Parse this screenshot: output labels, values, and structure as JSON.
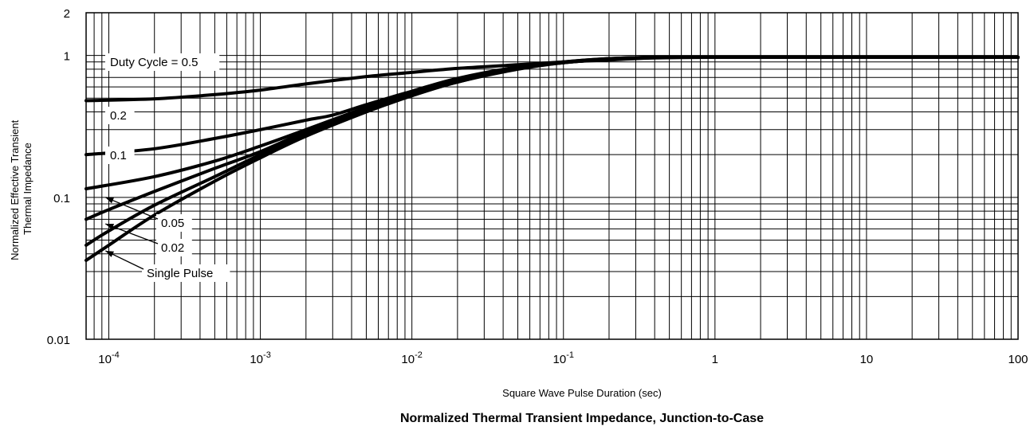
{
  "chart_data": {
    "type": "line",
    "title": "Normalized Thermal Transient Impedance, Junction-to-Case",
    "xlabel": "Square Wave Pulse Duration (sec)",
    "ylabel_lines": [
      "Normalized Effective Transient",
      "Thermal Impedance"
    ],
    "x_scale": "log",
    "y_scale": "log",
    "xlim": [
      7.08e-05,
      100
    ],
    "ylim": [
      0.01,
      2
    ],
    "grid": true,
    "x_ticks": [
      {
        "value": 0.0001,
        "base": "10",
        "exp": "-4"
      },
      {
        "value": 0.001,
        "base": "10",
        "exp": "-3"
      },
      {
        "value": 0.01,
        "base": "10",
        "exp": "-2"
      },
      {
        "value": 0.1,
        "base": "10",
        "exp": "-1"
      },
      {
        "value": 1,
        "base": "1",
        "exp": ""
      },
      {
        "value": 10,
        "base": "10",
        "exp": ""
      },
      {
        "value": 100,
        "base": "100",
        "exp": ""
      }
    ],
    "y_ticks": [
      {
        "value": 0.01,
        "label": "0.01"
      },
      {
        "value": 0.1,
        "label": "0.1"
      },
      {
        "value": 1,
        "label": "1"
      },
      {
        "value": 2,
        "label": "2"
      }
    ],
    "series": [
      {
        "name": "Duty Cycle = 0.5",
        "x": [
          7.08e-05,
          0.0002,
          0.0005,
          0.001,
          0.002,
          0.005,
          0.01,
          0.02,
          0.05,
          0.1,
          0.2,
          0.4,
          1,
          10,
          100
        ],
        "y": [
          0.48,
          0.495,
          0.53,
          0.57,
          0.63,
          0.71,
          0.76,
          0.81,
          0.86,
          0.9,
          0.93,
          0.96,
          0.97,
          0.97,
          0.97
        ]
      },
      {
        "name": "0.2",
        "x": [
          7.08e-05,
          0.0002,
          0.0005,
          0.001,
          0.002,
          0.003,
          0.005,
          0.01,
          0.02,
          0.05,
          0.1,
          0.2,
          0.4,
          1,
          100
        ],
        "y": [
          0.2,
          0.22,
          0.26,
          0.3,
          0.35,
          0.38,
          0.45,
          0.56,
          0.69,
          0.83,
          0.9,
          0.95,
          0.97,
          0.97,
          0.97
        ]
      },
      {
        "name": "0.1",
        "x": [
          7.08e-05,
          0.0002,
          0.0005,
          0.001,
          0.002,
          0.005,
          0.01,
          0.02,
          0.05,
          0.1,
          0.2,
          0.4,
          1,
          100
        ],
        "y": [
          0.115,
          0.14,
          0.18,
          0.23,
          0.3,
          0.43,
          0.55,
          0.67,
          0.82,
          0.9,
          0.95,
          0.97,
          0.97,
          0.97
        ]
      },
      {
        "name": "0.05",
        "x": [
          7.08e-05,
          0.0001,
          0.0002,
          0.0005,
          0.001,
          0.002,
          0.005,
          0.01,
          0.02,
          0.05,
          0.1,
          0.2,
          0.4,
          1,
          100
        ],
        "y": [
          0.07,
          0.082,
          0.11,
          0.16,
          0.21,
          0.29,
          0.42,
          0.54,
          0.66,
          0.81,
          0.89,
          0.94,
          0.97,
          0.97,
          0.97
        ]
      },
      {
        "name": "0.02",
        "x": [
          7.08e-05,
          0.0001,
          0.0002,
          0.0005,
          0.001,
          0.002,
          0.005,
          0.01,
          0.02,
          0.05,
          0.1,
          0.2,
          0.4,
          1,
          100
        ],
        "y": [
          0.046,
          0.058,
          0.088,
          0.14,
          0.2,
          0.28,
          0.41,
          0.53,
          0.65,
          0.81,
          0.89,
          0.94,
          0.97,
          0.97,
          0.97
        ]
      },
      {
        "name": "Single Pulse",
        "x": [
          7.08e-05,
          0.0001,
          0.0002,
          0.0005,
          0.001,
          0.002,
          0.005,
          0.01,
          0.02,
          0.05,
          0.1,
          0.2,
          0.4,
          1,
          100
        ],
        "y": [
          0.036,
          0.046,
          0.075,
          0.13,
          0.19,
          0.27,
          0.4,
          0.52,
          0.65,
          0.8,
          0.89,
          0.94,
          0.97,
          0.97,
          0.97
        ]
      }
    ],
    "annotations": [
      {
        "series": "Duty Cycle = 0.5",
        "text": "Duty Cycle = 0.5",
        "box": true
      },
      {
        "series": "0.2",
        "text": "0.2",
        "box": true
      },
      {
        "series": "0.1",
        "text": "0.1",
        "box": true
      },
      {
        "series": "0.05",
        "text": "0.05",
        "box": true,
        "arrow_to": {
          "x": 9.5e-05,
          "y": 0.1
        }
      },
      {
        "series": "0.02",
        "text": "0.02",
        "box": true,
        "arrow_to": {
          "x": 9.5e-05,
          "y": 0.065
        }
      },
      {
        "series": "Single Pulse",
        "text": "Single Pulse",
        "box": true,
        "arrow_to": {
          "x": 9.5e-05,
          "y": 0.042
        }
      }
    ]
  }
}
